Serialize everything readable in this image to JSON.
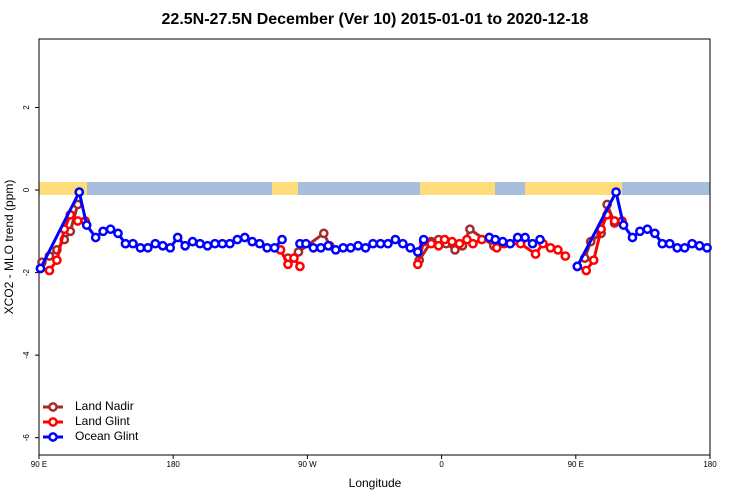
{
  "chart_data": {
    "type": "line",
    "title": "22.5N-27.5N December (Ver 10)   2015-01-01 to 2020-12-18",
    "x_label": "Longitude",
    "y_label": "XCO2 - MLO trend (ppm)",
    "xlim": [
      90,
      540
    ],
    "ylim": [
      -6.42,
      3.66
    ],
    "xticks": [
      {
        "value": 90,
        "label": "90 E"
      },
      180,
      {
        "value": 270,
        "label": "90 W"
      },
      {
        "value": 360,
        "label": "0"
      },
      {
        "value": 450,
        "label": "90 E"
      },
      {
        "value": 540,
        "label": "180"
      }
    ],
    "yticks": [
      2,
      0,
      -2,
      -4,
      -6
    ],
    "legend": "bottom-left",
    "series": [
      {
        "name": "Land Nadir",
        "color": "#a52a2a",
        "x": [
          92,
          97,
          102,
          107,
          111,
          116,
          null,
          257,
          264,
          281,
          285,
          null,
          345,
          353,
          358,
          363,
          369,
          374,
          379,
          395,
          null,
          456,
          460,
          467,
          471,
          476
        ],
        "values": [
          -1.75,
          -1.6,
          -1.45,
          -1.2,
          -1.0,
          -0.35,
          null,
          -1.65,
          -1.5,
          -1.05,
          -1.35,
          null,
          -1.7,
          -1.25,
          -1.2,
          -1.3,
          -1.45,
          -1.35,
          -0.95,
          -1.35,
          null,
          -1.65,
          -1.25,
          -1.05,
          -0.35,
          -0.8
        ]
      },
      {
        "name": "Land Glint",
        "color": "#ff0000",
        "x": [
          91,
          97,
          102,
          107,
          111,
          116,
          121,
          null,
          252,
          257,
          261,
          265,
          null,
          344,
          348,
          353,
          358,
          362,
          367,
          372,
          377,
          381,
          387,
          392,
          397,
          402,
          413,
          423,
          428,
          433,
          438,
          443,
          null,
          451,
          457,
          462,
          467,
          471,
          476,
          481
        ],
        "values": [
          -1.9,
          -1.95,
          -1.7,
          -0.95,
          -0.6,
          -0.75,
          -0.75,
          null,
          -1.45,
          -1.8,
          -1.65,
          -1.85,
          null,
          -1.8,
          -1.25,
          -1.3,
          -1.35,
          -1.2,
          -1.25,
          -1.3,
          -1.2,
          -1.3,
          -1.2,
          -1.15,
          -1.4,
          -1.3,
          -1.3,
          -1.55,
          -1.3,
          -1.4,
          -1.45,
          -1.6,
          null,
          -1.85,
          -1.95,
          -1.7,
          -0.95,
          -0.6,
          -0.75,
          -0.75
        ]
      },
      {
        "name": "Ocean Glint",
        "color": "#0000ff",
        "x": [
          91,
          117,
          122,
          128,
          133,
          138,
          143,
          148,
          153,
          158,
          163,
          168,
          173,
          178,
          183,
          188,
          193,
          198,
          203,
          208,
          213,
          218,
          223,
          228,
          233,
          238,
          243,
          248,
          253,
          null,
          265,
          269,
          274,
          279,
          284,
          289,
          294,
          299,
          304,
          309,
          314,
          319,
          324,
          329,
          334,
          339,
          344,
          348,
          null,
          392,
          396,
          401,
          406,
          411,
          416,
          421,
          426,
          null,
          451,
          477,
          482,
          488,
          493,
          498,
          503,
          508,
          513,
          518,
          523,
          528,
          533,
          538
        ],
        "values": [
          -1.9,
          -0.05,
          -0.85,
          -1.15,
          -1.0,
          -0.95,
          -1.05,
          -1.3,
          -1.3,
          -1.4,
          -1.4,
          -1.3,
          -1.35,
          -1.4,
          -1.15,
          -1.35,
          -1.25,
          -1.3,
          -1.35,
          -1.3,
          -1.3,
          -1.3,
          -1.2,
          -1.15,
          -1.25,
          -1.3,
          -1.4,
          -1.4,
          -1.2,
          null,
          -1.3,
          -1.3,
          -1.4,
          -1.4,
          -1.35,
          -1.45,
          -1.4,
          -1.4,
          -1.35,
          -1.4,
          -1.3,
          -1.3,
          -1.3,
          -1.2,
          -1.3,
          -1.4,
          -1.5,
          -1.2,
          null,
          -1.15,
          -1.2,
          -1.25,
          -1.3,
          -1.15,
          -1.15,
          -1.3,
          -1.2,
          null,
          -1.85,
          -0.05,
          -0.85,
          -1.15,
          -1.0,
          -0.95,
          -1.05,
          -1.3,
          -1.3,
          -1.4,
          -1.4,
          -1.3,
          -1.35,
          -1.4
        ]
      }
    ]
  }
}
